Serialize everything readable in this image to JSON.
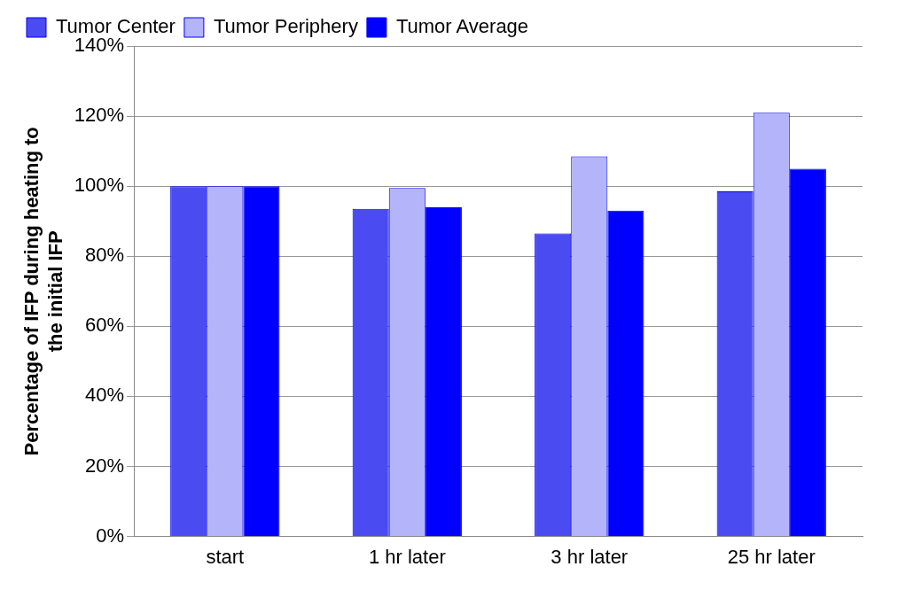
{
  "chart_data": {
    "type": "bar",
    "ylabel": "Percentage of IFP during heating to\nthe initial IFP",
    "categories": [
      "start",
      "1 hr later",
      "3 hr later",
      "25 hr later"
    ],
    "series": [
      {
        "name": "Tumor Center",
        "color": "#4b4bf2",
        "values": [
          100,
          93.5,
          86.5,
          98.5
        ]
      },
      {
        "name": "Tumor Periphery",
        "color": "#b4b4fa",
        "values": [
          100,
          99.5,
          108.5,
          121
        ]
      },
      {
        "name": "Tumor Average",
        "color": "#0000ff",
        "values": [
          100,
          94,
          93,
          105
        ]
      }
    ],
    "ylim": [
      0,
      140
    ],
    "yticks": [
      {
        "value": 0,
        "label": "0%"
      },
      {
        "value": 20,
        "label": "20%"
      },
      {
        "value": 40,
        "label": "40%"
      },
      {
        "value": 60,
        "label": "60%"
      },
      {
        "value": 80,
        "label": "80%"
      },
      {
        "value": 100,
        "label": "100%"
      },
      {
        "value": 120,
        "label": "120%"
      },
      {
        "value": 140,
        "label": "140%"
      }
    ],
    "grid": "y",
    "legend": "top left"
  }
}
